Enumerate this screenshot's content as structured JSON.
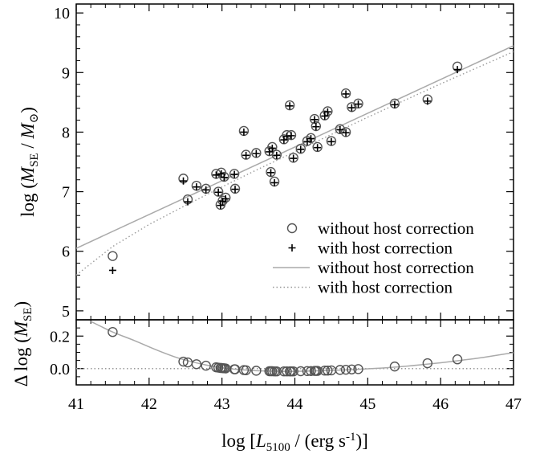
{
  "chart_data": [
    {
      "type": "scatter",
      "panel": "top",
      "x_label_parts": {
        "pre": "log [",
        "sym": "L",
        "sub": "5100",
        "post": " / (erg s",
        "sup": "-1",
        "end": ")]"
      },
      "y_label_parts": {
        "pre": "log (",
        "sym": "M",
        "sub": "SE",
        "mid": " / ",
        "sym2": "M",
        "sub2": "⊙",
        "end": ")"
      },
      "xlim": [
        41,
        47
      ],
      "ylim": [
        4.85,
        10.15
      ],
      "xticks": [
        "41",
        "42",
        "43",
        "44",
        "45",
        "46",
        "47"
      ],
      "yticks": [
        "5",
        "6",
        "7",
        "8",
        "9",
        "10"
      ],
      "legend_position": "bottom-right",
      "legend": [
        {
          "label": "without host correction",
          "kind": "circle"
        },
        {
          "label": "with host correction",
          "kind": "plus"
        },
        {
          "label": "without host correction",
          "kind": "solid-line"
        },
        {
          "label": "with host correction",
          "kind": "dotted-line"
        }
      ],
      "series": [
        {
          "name": "without host correction",
          "marker": "circle",
          "x": [
            41.5,
            42.47,
            42.53,
            42.65,
            42.78,
            42.92,
            42.95,
            42.98,
            42.99,
            43.01,
            43.03,
            43.05,
            43.17,
            43.18,
            43.3,
            43.33,
            43.47,
            43.65,
            43.67,
            43.69,
            43.72,
            43.75,
            43.85,
            43.89,
            43.93,
            43.95,
            43.98,
            44.08,
            44.17,
            44.22,
            44.27,
            44.29,
            44.31,
            44.41,
            44.45,
            44.5,
            44.62,
            44.7,
            44.7,
            44.78,
            44.87,
            45.37,
            45.82,
            46.23
          ],
          "y": [
            5.92,
            7.22,
            6.87,
            7.1,
            7.05,
            7.3,
            7.0,
            6.78,
            7.32,
            6.85,
            7.25,
            6.9,
            7.3,
            7.05,
            8.02,
            7.62,
            7.65,
            7.68,
            7.33,
            7.75,
            7.17,
            7.62,
            7.88,
            7.95,
            8.45,
            7.95,
            7.57,
            7.72,
            7.85,
            7.9,
            8.22,
            8.1,
            7.75,
            8.28,
            8.35,
            7.85,
            8.05,
            8.65,
            8.0,
            8.42,
            8.48,
            8.48,
            8.55,
            9.1
          ]
        },
        {
          "name": "with host correction",
          "marker": "plus",
          "x": [
            41.5,
            42.47,
            42.53,
            42.65,
            42.78,
            42.92,
            42.95,
            42.98,
            42.99,
            43.01,
            43.03,
            43.05,
            43.17,
            43.18,
            43.3,
            43.33,
            43.47,
            43.65,
            43.67,
            43.69,
            43.72,
            43.75,
            43.85,
            43.89,
            43.93,
            43.95,
            43.98,
            44.08,
            44.17,
            44.22,
            44.27,
            44.29,
            44.31,
            44.41,
            44.45,
            44.5,
            44.62,
            44.7,
            44.7,
            44.78,
            44.87,
            45.37,
            45.82,
            46.23
          ],
          "y": [
            5.68,
            7.18,
            6.83,
            7.08,
            7.03,
            7.28,
            6.99,
            6.77,
            7.3,
            6.84,
            7.24,
            6.88,
            7.29,
            7.04,
            8.0,
            7.61,
            7.64,
            7.67,
            7.32,
            7.73,
            7.15,
            7.61,
            7.87,
            7.93,
            8.44,
            7.94,
            7.56,
            7.71,
            7.84,
            7.89,
            8.21,
            8.09,
            7.74,
            8.27,
            8.34,
            7.84,
            8.04,
            8.64,
            7.99,
            8.41,
            8.47,
            8.46,
            8.52,
            9.05
          ]
        },
        {
          "name": "without host correction",
          "marker": "solid-line",
          "x": [
            41,
            47
          ],
          "y": [
            6.05,
            9.45
          ]
        },
        {
          "name": "with host correction",
          "marker": "dotted-line",
          "x": [
            41,
            41.5,
            42,
            42.5,
            43,
            43.5,
            44,
            44.5,
            45,
            45.5,
            46,
            46.5,
            47
          ],
          "y": [
            5.6,
            6.08,
            6.45,
            6.77,
            7.08,
            7.38,
            7.67,
            7.96,
            8.25,
            8.53,
            8.81,
            9.08,
            9.35
          ]
        }
      ]
    },
    {
      "type": "scatter",
      "panel": "bottom",
      "y_label_parts": {
        "pre": "Δ log (",
        "sym": "M",
        "sub": "SE",
        "end": ")"
      },
      "xlim": [
        41,
        47
      ],
      "ylim": [
        -0.1,
        0.3
      ],
      "yticks": [
        "0.0",
        "0.2"
      ],
      "series": [
        {
          "name": "without host correction",
          "marker": "circle",
          "x": [
            41.5,
            42.47,
            42.53,
            42.65,
            42.78,
            42.92,
            42.95,
            42.98,
            42.99,
            43.01,
            43.03,
            43.05,
            43.17,
            43.18,
            43.3,
            43.33,
            43.47,
            43.65,
            43.67,
            43.69,
            43.72,
            43.75,
            43.85,
            43.89,
            43.93,
            43.95,
            43.98,
            44.08,
            44.17,
            44.22,
            44.27,
            44.29,
            44.31,
            44.41,
            44.45,
            44.5,
            44.62,
            44.7,
            44.78,
            44.87,
            45.37,
            45.82,
            46.23
          ],
          "y": [
            0.225,
            0.043,
            0.038,
            0.027,
            0.018,
            0.008,
            0.006,
            0.004,
            0.004,
            0.003,
            0.002,
            0.001,
            -0.004,
            -0.004,
            -0.009,
            -0.01,
            -0.013,
            -0.016,
            -0.016,
            -0.016,
            -0.017,
            -0.017,
            -0.017,
            -0.017,
            -0.017,
            -0.017,
            -0.017,
            -0.016,
            -0.015,
            -0.015,
            -0.014,
            -0.014,
            -0.014,
            -0.012,
            -0.012,
            -0.011,
            -0.008,
            -0.007,
            -0.005,
            -0.003,
            0.013,
            0.033,
            0.057
          ]
        },
        {
          "name": "fit curve",
          "marker": "solid-line",
          "x": [
            41.2,
            41.5,
            41.8,
            42.1,
            42.4,
            42.7,
            43.0,
            43.3,
            43.6,
            43.9,
            44.2,
            44.5,
            44.8,
            45.1,
            45.4,
            45.7,
            46.0,
            46.3,
            46.6,
            47.0
          ],
          "y": [
            0.29,
            0.225,
            0.172,
            0.115,
            0.065,
            0.03,
            0.005,
            -0.008,
            -0.015,
            -0.017,
            -0.015,
            -0.011,
            -0.006,
            0.001,
            0.01,
            0.022,
            0.036,
            0.052,
            0.07,
            0.098
          ]
        },
        {
          "name": "zero line",
          "marker": "dotted-line",
          "x": [
            41,
            47
          ],
          "y": [
            0,
            0
          ]
        }
      ]
    }
  ]
}
